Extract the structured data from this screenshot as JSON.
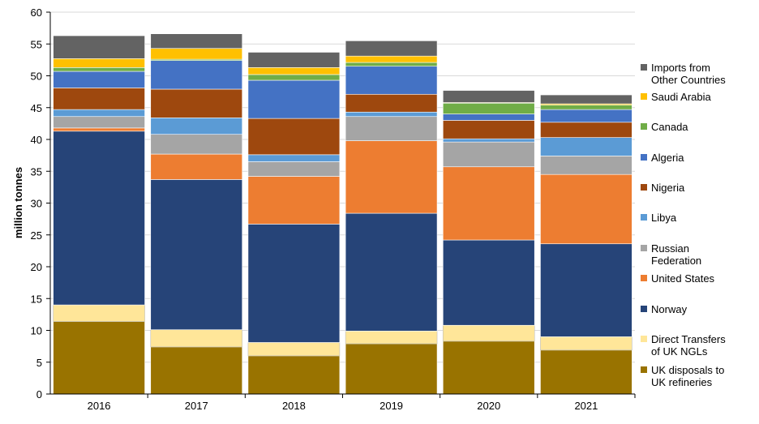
{
  "chart_data": {
    "type": "bar",
    "stacked": true,
    "title": "",
    "xlabel": "",
    "ylabel": "million tonnes",
    "ylim": [
      0,
      60
    ],
    "yticks": [
      0,
      5,
      10,
      15,
      20,
      25,
      30,
      35,
      40,
      45,
      50,
      55,
      60
    ],
    "grid": true,
    "legend_position": "right",
    "categories": [
      "2016",
      "2017",
      "2018",
      "2019",
      "2020",
      "2021"
    ],
    "series": [
      {
        "name": "UK disposals to UK refineries",
        "legend_lines": [
          "UK disposals to",
          "UK refineries"
        ],
        "color": "#997300",
        "values": [
          11.4,
          7.4,
          6.0,
          7.9,
          8.3,
          6.9
        ]
      },
      {
        "name": "Direct Transfers of UK NGLs",
        "legend_lines": [
          "Direct Transfers",
          "of UK NGLs"
        ],
        "color": "#FFE699",
        "values": [
          2.6,
          2.7,
          2.1,
          2.0,
          2.5,
          2.1
        ]
      },
      {
        "name": "Norway",
        "legend_lines": [
          "Norway"
        ],
        "color": "#264478",
        "values": [
          27.3,
          23.6,
          18.6,
          18.5,
          13.4,
          14.6
        ]
      },
      {
        "name": "United States",
        "legend_lines": [
          "United States"
        ],
        "color": "#ED7D31",
        "values": [
          0.5,
          4.0,
          7.5,
          11.4,
          11.5,
          10.9
        ]
      },
      {
        "name": "Russian Federation",
        "legend_lines": [
          "Russian",
          "Federation"
        ],
        "color": "#A5A5A5",
        "values": [
          1.8,
          3.1,
          2.3,
          3.8,
          3.9,
          2.9
        ]
      },
      {
        "name": "Libya",
        "legend_lines": [
          "Libya"
        ],
        "color": "#5B9BD5",
        "values": [
          1.1,
          2.6,
          1.1,
          0.7,
          0.5,
          2.9
        ]
      },
      {
        "name": "Nigeria",
        "legend_lines": [
          "Nigeria"
        ],
        "color": "#9E480E",
        "values": [
          3.4,
          4.5,
          5.7,
          2.8,
          2.9,
          2.4
        ]
      },
      {
        "name": "Algeria",
        "legend_lines": [
          "Algeria"
        ],
        "color": "#4472C4",
        "values": [
          2.6,
          4.5,
          6.0,
          4.4,
          1.0,
          2.0
        ]
      },
      {
        "name": "Canada",
        "legend_lines": [
          "Canada"
        ],
        "color": "#70AD47",
        "values": [
          0.6,
          0.2,
          0.9,
          0.6,
          1.7,
          0.7
        ]
      },
      {
        "name": "Saudi Arabia",
        "legend_lines": [
          "Saudi Arabia"
        ],
        "color": "#FFC000",
        "values": [
          1.4,
          1.7,
          1.1,
          1.0,
          0.1,
          0.2
        ]
      },
      {
        "name": "Imports from Other Countries",
        "legend_lines": [
          "Imports from",
          "Other Countries"
        ],
        "color": "#636363",
        "values": [
          3.6,
          2.3,
          2.4,
          2.4,
          1.9,
          1.4
        ]
      }
    ]
  }
}
